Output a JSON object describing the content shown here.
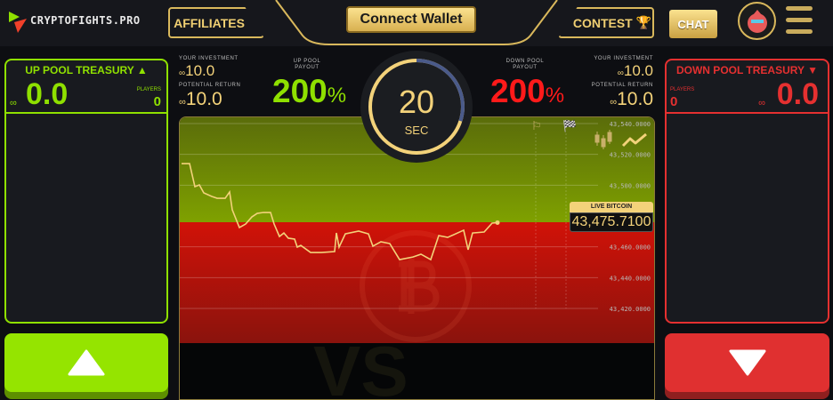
{
  "header": {
    "logo_text": "CRYPTOFIGHTS.PRO",
    "affiliates_label": "AFFILIATES",
    "connect_wallet_label": "Connect Wallet",
    "contest_label": "CONTEST",
    "chat_label": "CHAT"
  },
  "up_pool": {
    "title": "UP POOL TREASURY",
    "treasury": "0.0",
    "players_label": "PLAYERS",
    "players": "0",
    "your_investment_label": "YOUR INVESTMENT",
    "your_investment": "10.0",
    "potential_return_label": "POTENTIAL RETURN",
    "potential_return": "10.0",
    "payout_label_1": "UP POOL",
    "payout_label_2": "PAYOUT",
    "payout": "200",
    "percent": "%"
  },
  "down_pool": {
    "title": "DOWN POOL TREASURY",
    "treasury": "0.0",
    "players_label": "PLAYERS",
    "players": "0",
    "your_investment_label": "YOUR INVESTMENT",
    "your_investment": "10.0",
    "potential_return_label": "POTENTIAL RETURN",
    "potential_return": "10.0",
    "payout_label_1": "DOWN POOL",
    "payout_label_2": "PAYOUT",
    "payout": "200",
    "percent": "%"
  },
  "timer": {
    "value": "20",
    "unit": "SEC",
    "progress": 0.3
  },
  "live": {
    "label": "LIVE BITCOIN",
    "price": "43,475.7100"
  },
  "colors": {
    "up": "#8fe000",
    "down": "#e53030",
    "gold": "#f3d27a",
    "bg": "#0d0e12"
  },
  "chart_data": {
    "type": "line",
    "y_ticks": [
      "43,540.0000",
      "43,520.0000",
      "43,500.0000",
      "43,460.0000",
      "43,440.0000",
      "43,420.0000"
    ],
    "y_tick_values": [
      43540,
      43520,
      43500,
      43460,
      43440,
      43420
    ],
    "ylim": [
      43420,
      43540
    ],
    "live_price": 43475.71,
    "values": [
      43514.0,
      43514.0,
      43499.0,
      43500.2,
      43495.0,
      43492.7,
      43491.5,
      43491.5,
      43495.6,
      43484.0,
      43472.5,
      43474.8,
      43479.4,
      43481.7,
      43482.3,
      43482.3,
      43474.8,
      43466.7,
      43469.0,
      43465.6,
      43465.0,
      43459.8,
      43460.9,
      43456.3,
      43456.3,
      43456.9,
      43469.0,
      43459.8,
      43468.4,
      43470.2,
      43468.4,
      43460.4,
      43463.3,
      43462.1,
      43451.7,
      43453.4,
      43455.2,
      43451.7,
      43458.6,
      43467.3,
      43466.1,
      43470.8,
      43458.1,
      43469.0,
      43469.6,
      43475.4,
      43475.7
    ]
  },
  "icons": [
    "logo-play-icon",
    "chain-link-icon",
    "trophy-icon",
    "avatar-icon",
    "hamburger-menu-icon",
    "flag-icon",
    "checkered-flag-icon",
    "candlestick-icon",
    "line-chart-icon",
    "bitcoin-icon",
    "arrow-up-icon",
    "arrow-down-icon"
  ]
}
